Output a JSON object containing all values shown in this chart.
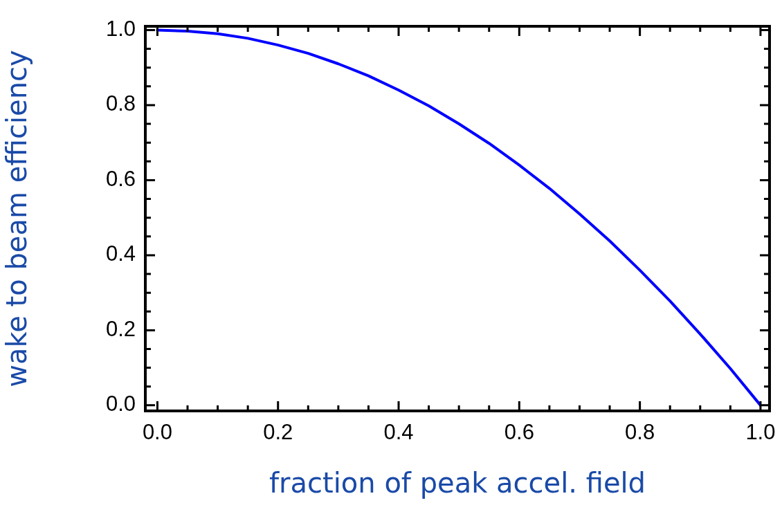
{
  "chart_data": {
    "type": "line",
    "xlabel": "fraction of peak accel. field",
    "ylabel": "wake to beam efficiency",
    "x": [
      0,
      0.05,
      0.1,
      0.15,
      0.2,
      0.25,
      0.3,
      0.35,
      0.4,
      0.45,
      0.5,
      0.55,
      0.6,
      0.65,
      0.7,
      0.75,
      0.8,
      0.85,
      0.9,
      0.95,
      1.0
    ],
    "series": [
      {
        "color": "#0000ff",
        "values": [
          1.0,
          0.997,
          0.99,
          0.978,
          0.96,
          0.938,
          0.91,
          0.878,
          0.84,
          0.798,
          0.75,
          0.698,
          0.64,
          0.578,
          0.51,
          0.438,
          0.36,
          0.278,
          0.19,
          0.098,
          0.0
        ]
      }
    ],
    "xlim": [
      -0.02,
      1.015
    ],
    "ylim": [
      -0.015,
      1.01
    ],
    "xticks": [
      {
        "value": 0,
        "label": "0.0"
      },
      0.2,
      0.4,
      0.6,
      0.8,
      {
        "value": 1,
        "label": "1.0"
      }
    ],
    "yticks": [
      {
        "value": 0,
        "label": "0.0"
      },
      0.2,
      0.4,
      0.6,
      0.8,
      {
        "value": 1,
        "label": "1.0"
      }
    ],
    "grid": false,
    "legend": false,
    "marker": "none",
    "line_style": "solid"
  }
}
